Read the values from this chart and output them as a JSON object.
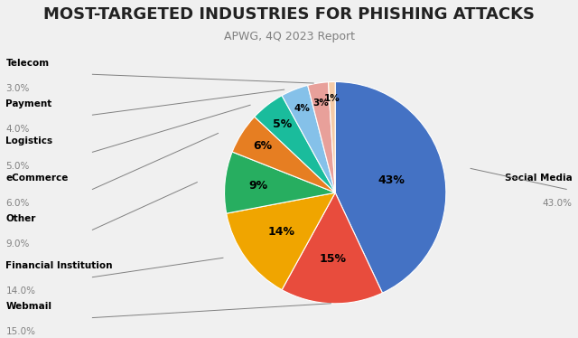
{
  "title": "MOST-TARGETED INDUSTRIES FOR PHISHING ATTACKS",
  "subtitle": "APWG, 4Q 2023 Report",
  "values": [
    43,
    15,
    14,
    9,
    6,
    5,
    4,
    3,
    1
  ],
  "pct_labels": [
    "43%",
    "15%",
    "14%",
    "9%",
    "6%",
    "5%",
    "4%",
    "3%",
    "1%"
  ],
  "colors": [
    "#4472C4",
    "#E84C3D",
    "#F0A500",
    "#27AE60",
    "#E67E22",
    "#1ABC9C",
    "#85C1E9",
    "#E8A09A",
    "#F5CBA7"
  ],
  "left_labels": [
    "Telecom",
    "Payment",
    "Logistics",
    "eCommerce",
    "Other",
    "Financial Institution",
    "Webmail"
  ],
  "left_values": [
    "3.0%",
    "4.0%",
    "5.0%",
    "6.0%",
    "9.0%",
    "14.0%",
    "15.0%"
  ],
  "right_label": "Social Media",
  "right_value": "43.0%",
  "title_fontsize": 13,
  "subtitle_fontsize": 9,
  "background_color": "#f0f0f0"
}
